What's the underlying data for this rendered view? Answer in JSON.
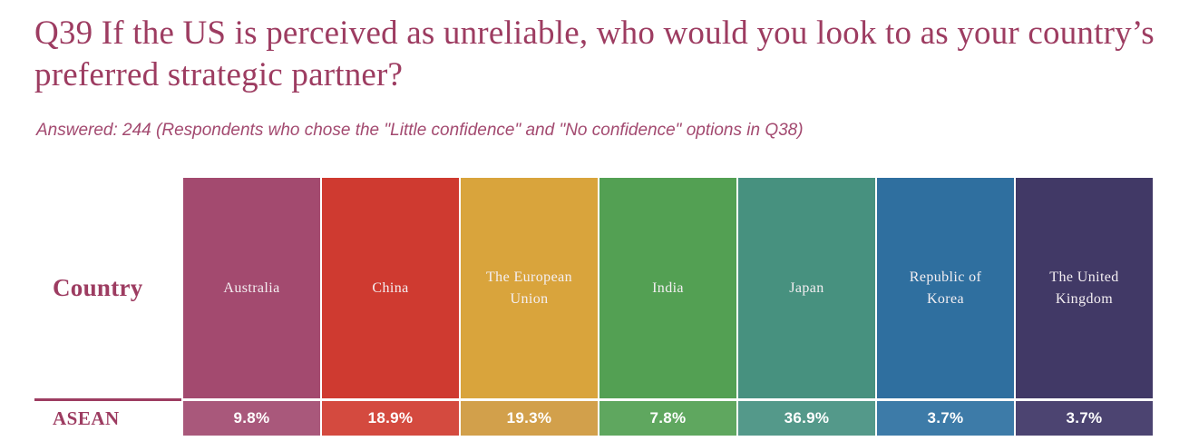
{
  "header": {
    "title": "Q39 If the US is perceived as unreliable, who would you look to as your country’s preferred strategic partner?",
    "subtitle": "Answered: 244 (Respondents who chose the \"Little confidence\" and \"No confidence\" options in Q38)"
  },
  "table": {
    "corner_label": "Country",
    "row_label": "ASEAN",
    "columns": [
      {
        "label": "Australia",
        "value": "9.8%",
        "header_color": "#A34A6F",
        "row_color": "#A9587B"
      },
      {
        "label": "China",
        "value": "18.9%",
        "header_color": "#CF3A30",
        "row_color": "#D44A3F"
      },
      {
        "label": "The European Union",
        "value": "19.3%",
        "header_color": "#D9A43C",
        "row_color": "#D2A04B"
      },
      {
        "label": "India",
        "value": "7.8%",
        "header_color": "#53A053",
        "row_color": "#5FA75F"
      },
      {
        "label": "Japan",
        "value": "36.9%",
        "header_color": "#47917F",
        "row_color": "#54998A"
      },
      {
        "label": "Republic of Korea",
        "value": "3.7%",
        "header_color": "#2F6F9F",
        "row_color": "#3D7BA8"
      },
      {
        "label": "The United Kingdom",
        "value": "3.7%",
        "header_color": "#413966",
        "row_color": "#4C4471"
      }
    ]
  },
  "colors": {
    "title_text": "#9D3C61",
    "subtitle_text": "#A34A70",
    "row_separator": "#9D3C61",
    "column_separator": "#FFFFFF"
  },
  "chart_data": {
    "type": "table",
    "title": "Q39 If the US is perceived as unreliable, who would you look to as your country’s preferred strategic partner?",
    "subtitle": "Answered: 244 (Respondents who chose the \"Little confidence\" and \"No confidence\" options in Q38)",
    "row_header": "Country",
    "categories": [
      "Australia",
      "China",
      "The European Union",
      "India",
      "Japan",
      "Republic of Korea",
      "The United Kingdom"
    ],
    "series": [
      {
        "name": "ASEAN",
        "values": [
          9.8,
          18.9,
          19.3,
          7.8,
          36.9,
          3.7,
          3.7
        ]
      }
    ],
    "unit": "%"
  }
}
